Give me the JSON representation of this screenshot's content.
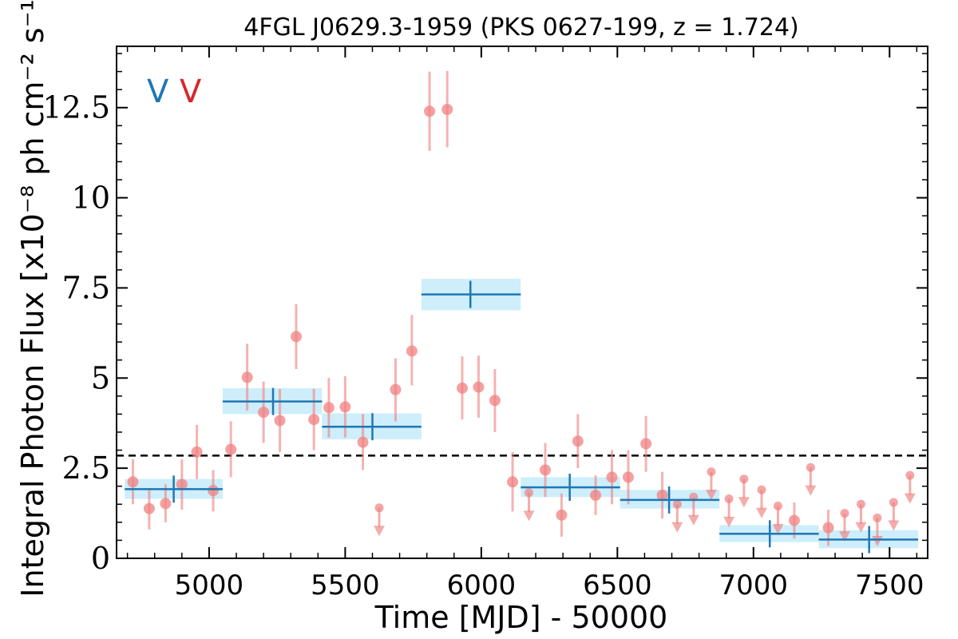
{
  "chart_data": {
    "type": "scatter",
    "title": "4FGL J0629.3-1959 (PKS 0627-199, z = 1.724)",
    "xlabel": "Time [MJD] - 50000",
    "ylabel": "Integral Photon Flux [x10⁻⁸ ph cm⁻² s⁻¹]",
    "xlim": [
      4660,
      7640
    ],
    "ylim": [
      0,
      14.2
    ],
    "xticks": [
      5000,
      5500,
      6000,
      6500,
      7000,
      7500
    ],
    "xtick_labels": [
      "5000",
      "5500",
      "6000",
      "6500",
      "7000",
      "7500"
    ],
    "yticks": [
      0,
      2.5,
      5,
      7.5,
      10,
      12.5
    ],
    "ytick_labels": [
      "0",
      "2.5",
      "5",
      "7.5",
      "10",
      "12.5"
    ],
    "markers": [
      {
        "text": "V",
        "color": "#1f77b4"
      },
      {
        "text": "V",
        "color": "#d62728"
      }
    ],
    "reference_line": {
      "y": 2.85,
      "style": "dashed",
      "color": "#000000"
    },
    "colors": {
      "binned": "#1f77b4",
      "binned_fill": "#cdeefa",
      "short": "#f08080"
    },
    "series": [
      {
        "kind": "binned",
        "bins": [
          {
            "x0": 4690,
            "x1": 5050,
            "xc": 4870,
            "y": 1.92,
            "ylo": 1.65,
            "yhi": 2.2
          },
          {
            "x0": 5050,
            "x1": 5415,
            "xc": 5235,
            "y": 4.35,
            "ylo": 4.0,
            "yhi": 4.72
          },
          {
            "x0": 5415,
            "x1": 5780,
            "xc": 5600,
            "y": 3.65,
            "ylo": 3.3,
            "yhi": 4.02
          },
          {
            "x0": 5780,
            "x1": 6145,
            "xc": 5960,
            "y": 7.32,
            "ylo": 6.88,
            "yhi": 7.75
          },
          {
            "x0": 6145,
            "x1": 6510,
            "xc": 6325,
            "y": 1.97,
            "ylo": 1.7,
            "yhi": 2.25
          },
          {
            "x0": 6510,
            "x1": 6875,
            "xc": 6690,
            "y": 1.62,
            "ylo": 1.38,
            "yhi": 1.9
          },
          {
            "x0": 6875,
            "x1": 7240,
            "xc": 7060,
            "y": 0.68,
            "ylo": 0.45,
            "yhi": 0.92
          },
          {
            "x0": 7240,
            "x1": 7605,
            "xc": 7425,
            "y": 0.52,
            "ylo": 0.28,
            "yhi": 0.78
          }
        ]
      },
      {
        "kind": "points",
        "points": [
          {
            "x": 4720,
            "y": 2.12,
            "ylo": 1.5,
            "yhi": 2.75
          },
          {
            "x": 4780,
            "y": 1.38,
            "ylo": 0.8,
            "yhi": 1.95
          },
          {
            "x": 4840,
            "y": 1.52,
            "ylo": 1.0,
            "yhi": 2.05
          },
          {
            "x": 4900,
            "y": 2.05,
            "ylo": 1.35,
            "yhi": 2.75
          },
          {
            "x": 4955,
            "y": 2.95,
            "ylo": 2.2,
            "yhi": 3.7
          },
          {
            "x": 5015,
            "y": 1.88,
            "ylo": 1.3,
            "yhi": 2.45
          },
          {
            "x": 5080,
            "y": 3.02,
            "ylo": 2.25,
            "yhi": 3.8
          },
          {
            "x": 5140,
            "y": 5.02,
            "ylo": 4.1,
            "yhi": 5.95
          },
          {
            "x": 5200,
            "y": 4.05,
            "ylo": 3.2,
            "yhi": 4.9
          },
          {
            "x": 5260,
            "y": 3.82,
            "ylo": 2.95,
            "yhi": 4.7
          },
          {
            "x": 5320,
            "y": 6.15,
            "ylo": 5.25,
            "yhi": 7.05
          },
          {
            "x": 5385,
            "y": 3.85,
            "ylo": 3.0,
            "yhi": 4.7
          },
          {
            "x": 5440,
            "y": 4.18,
            "ylo": 3.35,
            "yhi": 5.0
          },
          {
            "x": 5500,
            "y": 4.2,
            "ylo": 3.35,
            "yhi": 5.05
          },
          {
            "x": 5565,
            "y": 3.22,
            "ylo": 2.45,
            "yhi": 4.0
          },
          {
            "x": 5625,
            "y": 1.4,
            "ul": true
          },
          {
            "x": 5685,
            "y": 4.68,
            "ylo": 3.8,
            "yhi": 5.55
          },
          {
            "x": 5745,
            "y": 5.75,
            "ylo": 4.8,
            "yhi": 6.75
          },
          {
            "x": 5810,
            "y": 12.4,
            "ylo": 11.3,
            "yhi": 13.5
          },
          {
            "x": 5875,
            "y": 12.45,
            "ylo": 11.4,
            "yhi": 13.52
          },
          {
            "x": 5930,
            "y": 4.72,
            "ylo": 3.85,
            "yhi": 5.6
          },
          {
            "x": 5990,
            "y": 4.75,
            "ylo": 3.9,
            "yhi": 5.62
          },
          {
            "x": 6050,
            "y": 4.38,
            "ylo": 3.5,
            "yhi": 5.25
          },
          {
            "x": 6115,
            "y": 2.12,
            "ylo": 1.3,
            "yhi": 2.95
          },
          {
            "x": 6175,
            "y": 1.82,
            "ul": true
          },
          {
            "x": 6235,
            "y": 2.45,
            "ylo": 1.7,
            "yhi": 3.2
          },
          {
            "x": 6295,
            "y": 1.2,
            "ylo": 0.6,
            "yhi": 1.8
          },
          {
            "x": 6355,
            "y": 3.25,
            "ylo": 2.5,
            "yhi": 4.0
          },
          {
            "x": 6420,
            "y": 1.75,
            "ylo": 1.2,
            "yhi": 2.3
          },
          {
            "x": 6480,
            "y": 2.25,
            "ylo": 1.5,
            "yhi": 3.0
          },
          {
            "x": 6540,
            "y": 2.25,
            "ylo": 1.5,
            "yhi": 3.0
          },
          {
            "x": 6605,
            "y": 3.18,
            "ylo": 2.4,
            "yhi": 3.95
          },
          {
            "x": 6665,
            "y": 1.75,
            "ylo": 1.1,
            "yhi": 2.4
          },
          {
            "x": 6720,
            "y": 1.5,
            "ul": true
          },
          {
            "x": 6780,
            "y": 1.7,
            "ul": true
          },
          {
            "x": 6845,
            "y": 2.4,
            "ul": true
          },
          {
            "x": 6910,
            "y": 1.65,
            "ul": true
          },
          {
            "x": 6965,
            "y": 2.2,
            "ul": true
          },
          {
            "x": 7030,
            "y": 1.9,
            "ul": true
          },
          {
            "x": 7090,
            "y": 1.45,
            "ul": true
          },
          {
            "x": 7150,
            "y": 1.05,
            "ylo": 0.55,
            "yhi": 1.55
          },
          {
            "x": 7210,
            "y": 2.52,
            "ul": true
          },
          {
            "x": 7275,
            "y": 0.85,
            "ylo": 0.35,
            "yhi": 1.35
          },
          {
            "x": 7335,
            "y": 1.25,
            "ul": true
          },
          {
            "x": 7395,
            "y": 1.5,
            "ul": true
          },
          {
            "x": 7455,
            "y": 1.12,
            "ul": true
          },
          {
            "x": 7515,
            "y": 1.55,
            "ul": true
          },
          {
            "x": 7575,
            "y": 2.3,
            "ul": true
          }
        ]
      }
    ]
  }
}
